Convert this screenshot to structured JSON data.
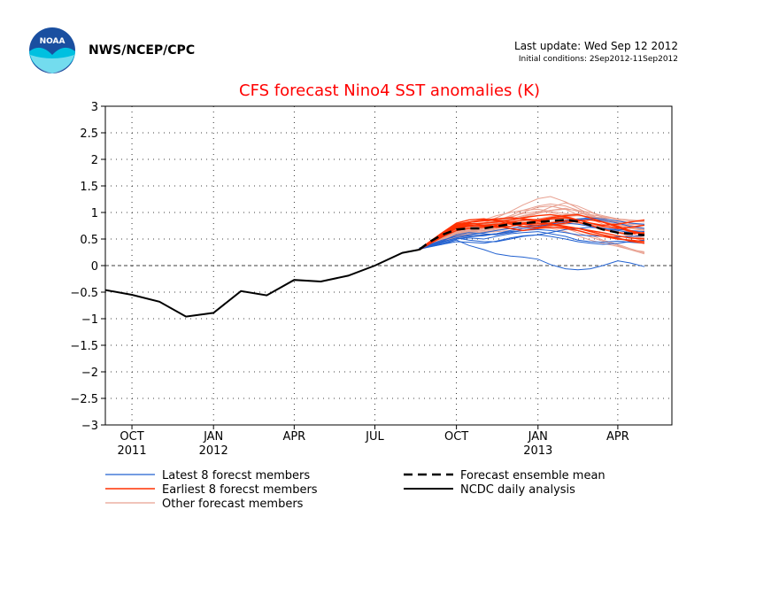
{
  "header": {
    "org": "NWS/NCEP/CPC",
    "last_update": "Last update: Wed Sep 12 2012",
    "initial_conditions": "Initial conditions: 2Sep2012-11Sep2012",
    "logo_text": "NOAA"
  },
  "colors": {
    "title": "#ff0000",
    "latest": "#2060d0",
    "earliest": "#ff3000",
    "other": "#e8a090",
    "mean": "#000000",
    "analysis": "#000000",
    "logo_blue": "#1a4fa0",
    "logo_cyan": "#00c0e0"
  },
  "chart_data": {
    "type": "line",
    "title": "CFS forecast Nino4 SST anomalies (K)",
    "xlabel": "",
    "ylabel": "",
    "ylim": [
      -3,
      3
    ],
    "yticks": [
      "3",
      "2.5",
      "2",
      "1.5",
      "1",
      "0.5",
      "0",
      "−0.5",
      "−1",
      "−1.5",
      "−2",
      "−2.5",
      "−3"
    ],
    "yticks_values": [
      3,
      2.5,
      2,
      1.5,
      1,
      0.5,
      0,
      -0.5,
      -1,
      -1.5,
      -2,
      -2.5,
      -3
    ],
    "xlim": [
      "2011-09-01",
      "2013-06-01"
    ],
    "xticks": [
      {
        "month": "OCT",
        "year": "2011",
        "x": "2011-10-01"
      },
      {
        "month": "JAN",
        "year": "2012",
        "x": "2012-01-01"
      },
      {
        "month": "APR",
        "year": "",
        "x": "2012-04-01"
      },
      {
        "month": "JUL",
        "year": "",
        "x": "2012-07-01"
      },
      {
        "month": "OCT",
        "year": "",
        "x": "2012-10-01"
      },
      {
        "month": "JAN",
        "year": "2013",
        "x": "2013-01-01"
      },
      {
        "month": "APR",
        "year": "",
        "x": "2013-04-01"
      }
    ],
    "grid": true,
    "zero_line": true,
    "analysis": {
      "name": "NCDC daily analysis",
      "x": [
        "2011-09-01",
        "2011-10-01",
        "2011-11-01",
        "2011-12-01",
        "2012-01-01",
        "2012-02-01",
        "2012-03-01",
        "2012-04-01",
        "2012-05-01",
        "2012-06-01",
        "2012-07-01",
        "2012-08-01",
        "2012-08-20"
      ],
      "y": [
        -0.46,
        -0.55,
        -0.68,
        -0.96,
        -0.89,
        -0.48,
        -0.56,
        -0.27,
        -0.3,
        -0.19,
        0.0,
        0.24,
        0.3
      ]
    },
    "ensemble_mean": {
      "name": "Forecast ensemble mean",
      "x": [
        "2012-08-20",
        "2012-09-01",
        "2012-09-15",
        "2012-10-01",
        "2012-10-15",
        "2012-11-01",
        "2012-11-15",
        "2012-12-01",
        "2012-12-15",
        "2013-01-01",
        "2013-01-15",
        "2013-02-01",
        "2013-02-15",
        "2013-03-01",
        "2013-03-15",
        "2013-04-01",
        "2013-04-15",
        "2013-05-01"
      ],
      "y": [
        0.3,
        0.45,
        0.58,
        0.68,
        0.7,
        0.7,
        0.74,
        0.78,
        0.8,
        0.82,
        0.84,
        0.86,
        0.83,
        0.76,
        0.68,
        0.62,
        0.6,
        0.57
      ]
    },
    "latest_members": {
      "name": "Latest 8 forecst members",
      "x": [
        "2012-08-20",
        "2012-09-15",
        "2012-10-01",
        "2012-10-15",
        "2012-11-01",
        "2012-11-15",
        "2012-12-01",
        "2012-12-15",
        "2013-01-01",
        "2013-01-15",
        "2013-02-01",
        "2013-02-15",
        "2013-03-01",
        "2013-03-15",
        "2013-04-01",
        "2013-04-15",
        "2013-05-01"
      ],
      "series": [
        [
          0.32,
          0.4,
          0.48,
          0.38,
          0.3,
          0.22,
          0.18,
          0.16,
          0.12,
          0.02,
          -0.06,
          -0.08,
          -0.06,
          0.0,
          0.09,
          0.05,
          -0.02
        ],
        [
          0.32,
          0.42,
          0.5,
          0.52,
          0.5,
          0.55,
          0.6,
          0.62,
          0.64,
          0.6,
          0.55,
          0.48,
          0.45,
          0.44,
          0.46,
          0.44,
          0.42
        ],
        [
          0.33,
          0.45,
          0.52,
          0.48,
          0.45,
          0.45,
          0.5,
          0.55,
          0.58,
          0.62,
          0.68,
          0.7,
          0.72,
          0.7,
          0.66,
          0.62,
          0.6
        ],
        [
          0.32,
          0.46,
          0.58,
          0.62,
          0.6,
          0.58,
          0.62,
          0.66,
          0.72,
          0.78,
          0.85,
          0.88,
          0.9,
          0.88,
          0.84,
          0.8,
          0.78
        ],
        [
          0.31,
          0.4,
          0.45,
          0.44,
          0.42,
          0.46,
          0.52,
          0.56,
          0.58,
          0.55,
          0.5,
          0.45,
          0.42,
          0.4,
          0.42,
          0.45,
          0.48
        ],
        [
          0.33,
          0.48,
          0.55,
          0.58,
          0.62,
          0.66,
          0.7,
          0.74,
          0.76,
          0.8,
          0.82,
          0.86,
          0.88,
          0.85,
          0.8,
          0.74,
          0.7
        ],
        [
          0.32,
          0.44,
          0.52,
          0.56,
          0.58,
          0.6,
          0.64,
          0.66,
          0.68,
          0.66,
          0.62,
          0.58,
          0.56,
          0.55,
          0.54,
          0.55,
          0.56
        ],
        [
          0.31,
          0.42,
          0.5,
          0.54,
          0.56,
          0.6,
          0.66,
          0.7,
          0.74,
          0.78,
          0.8,
          0.78,
          0.74,
          0.7,
          0.68,
          0.66,
          0.64
        ]
      ]
    },
    "earliest_members": {
      "name": "Earliest 8 forecst members",
      "x": [
        "2012-08-20",
        "2012-09-15",
        "2012-10-01",
        "2012-10-15",
        "2012-11-01",
        "2012-11-15",
        "2012-12-01",
        "2012-12-15",
        "2013-01-01",
        "2013-01-15",
        "2013-02-01",
        "2013-02-15",
        "2013-03-01",
        "2013-03-15",
        "2013-04-01",
        "2013-04-15",
        "2013-05-01"
      ],
      "series": [
        [
          0.3,
          0.6,
          0.78,
          0.82,
          0.84,
          0.86,
          0.82,
          0.8,
          0.84,
          0.88,
          0.9,
          0.86,
          0.8,
          0.74,
          0.7,
          0.72,
          0.76
        ],
        [
          0.3,
          0.55,
          0.7,
          0.74,
          0.76,
          0.78,
          0.8,
          0.78,
          0.76,
          0.8,
          0.84,
          0.82,
          0.76,
          0.68,
          0.62,
          0.6,
          0.62
        ],
        [
          0.3,
          0.58,
          0.76,
          0.8,
          0.76,
          0.74,
          0.7,
          0.66,
          0.7,
          0.72,
          0.7,
          0.66,
          0.6,
          0.55,
          0.5,
          0.48,
          0.45
        ],
        [
          0.31,
          0.62,
          0.8,
          0.86,
          0.88,
          0.84,
          0.78,
          0.74,
          0.72,
          0.76,
          0.8,
          0.84,
          0.86,
          0.82,
          0.74,
          0.66,
          0.6
        ],
        [
          0.3,
          0.54,
          0.66,
          0.7,
          0.72,
          0.76,
          0.82,
          0.86,
          0.84,
          0.78,
          0.72,
          0.7,
          0.66,
          0.62,
          0.56,
          0.52,
          0.5
        ],
        [
          0.3,
          0.6,
          0.74,
          0.78,
          0.8,
          0.82,
          0.86,
          0.9,
          0.94,
          0.96,
          0.92,
          0.86,
          0.8,
          0.76,
          0.78,
          0.82,
          0.86
        ],
        [
          0.3,
          0.56,
          0.72,
          0.76,
          0.74,
          0.72,
          0.74,
          0.78,
          0.8,
          0.78,
          0.74,
          0.7,
          0.64,
          0.58,
          0.52,
          0.46,
          0.42
        ],
        [
          0.31,
          0.58,
          0.74,
          0.82,
          0.86,
          0.88,
          0.9,
          0.88,
          0.86,
          0.9,
          0.94,
          0.96,
          0.9,
          0.82,
          0.72,
          0.64,
          0.58
        ]
      ]
    },
    "other_members": {
      "name": "Other forecast members",
      "x": [
        "2012-08-20",
        "2012-09-15",
        "2012-10-01",
        "2012-10-15",
        "2012-11-01",
        "2012-11-15",
        "2012-12-01",
        "2012-12-15",
        "2013-01-01",
        "2013-01-15",
        "2013-02-01",
        "2013-02-15",
        "2013-03-01",
        "2013-03-15",
        "2013-04-01",
        "2013-04-15",
        "2013-05-01"
      ],
      "series": [
        [
          0.3,
          0.5,
          0.64,
          0.72,
          0.8,
          0.9,
          1.02,
          1.14,
          1.26,
          1.3,
          1.2,
          1.08,
          0.96,
          0.86,
          0.8,
          0.78,
          0.76
        ],
        [
          0.3,
          0.48,
          0.6,
          0.66,
          0.72,
          0.8,
          0.9,
          1.0,
          1.1,
          1.12,
          1.06,
          0.96,
          0.88,
          0.78,
          0.7,
          0.66,
          0.62
        ],
        [
          0.3,
          0.46,
          0.56,
          0.6,
          0.64,
          0.66,
          0.7,
          0.72,
          0.76,
          0.78,
          0.74,
          0.66,
          0.58,
          0.48,
          0.4,
          0.32,
          0.24
        ],
        [
          0.3,
          0.52,
          0.66,
          0.72,
          0.76,
          0.8,
          0.84,
          0.9,
          0.98,
          1.04,
          1.08,
          1.02,
          0.92,
          0.82,
          0.72,
          0.62,
          0.52
        ],
        [
          0.3,
          0.44,
          0.54,
          0.58,
          0.62,
          0.64,
          0.66,
          0.7,
          0.72,
          0.7,
          0.64,
          0.56,
          0.48,
          0.42,
          0.36,
          0.3,
          0.26
        ],
        [
          0.3,
          0.56,
          0.7,
          0.78,
          0.86,
          0.94,
          1.0,
          1.04,
          1.06,
          1.02,
          0.98,
          0.94,
          0.92,
          0.9,
          0.88,
          0.86,
          0.84
        ],
        [
          0.3,
          0.5,
          0.62,
          0.66,
          0.68,
          0.72,
          0.78,
          0.84,
          0.88,
          0.92,
          0.96,
          0.98,
          0.96,
          0.92,
          0.86,
          0.8,
          0.76
        ],
        [
          0.3,
          0.48,
          0.58,
          0.64,
          0.7,
          0.76,
          0.8,
          0.82,
          0.8,
          0.76,
          0.7,
          0.62,
          0.54,
          0.46,
          0.38,
          0.3,
          0.22
        ],
        [
          0.3,
          0.54,
          0.68,
          0.74,
          0.78,
          0.82,
          0.86,
          0.92,
          1.0,
          1.1,
          1.18,
          1.12,
          1.02,
          0.9,
          0.8,
          0.72,
          0.66
        ],
        [
          0.3,
          0.46,
          0.56,
          0.62,
          0.66,
          0.7,
          0.74,
          0.78,
          0.82,
          0.86,
          0.88,
          0.86,
          0.8,
          0.72,
          0.64,
          0.56,
          0.5
        ],
        [
          0.3,
          0.52,
          0.66,
          0.7,
          0.72,
          0.74,
          0.78,
          0.8,
          0.84,
          0.88,
          0.92,
          0.94,
          0.92,
          0.88,
          0.82,
          0.76,
          0.7
        ],
        [
          0.3,
          0.5,
          0.62,
          0.68,
          0.74,
          0.82,
          0.92,
          0.98,
          1.02,
          1.0,
          0.94,
          0.86,
          0.78,
          0.7,
          0.62,
          0.56,
          0.52
        ],
        [
          0.3,
          0.48,
          0.6,
          0.64,
          0.66,
          0.68,
          0.7,
          0.74,
          0.78,
          0.82,
          0.86,
          0.88,
          0.86,
          0.82,
          0.78,
          0.72,
          0.68
        ],
        [
          0.3,
          0.54,
          0.7,
          0.76,
          0.8,
          0.84,
          0.88,
          0.94,
          1.0,
          1.04,
          1.06,
          1.04,
          1.0,
          0.94,
          0.88,
          0.84,
          0.82
        ],
        [
          0.3,
          0.46,
          0.54,
          0.56,
          0.58,
          0.6,
          0.62,
          0.66,
          0.7,
          0.74,
          0.78,
          0.8,
          0.76,
          0.7,
          0.62,
          0.54,
          0.46
        ],
        [
          0.3,
          0.52,
          0.64,
          0.7,
          0.76,
          0.84,
          0.94,
          1.04,
          1.12,
          1.16,
          1.12,
          1.04,
          0.94,
          0.84,
          0.76,
          0.7,
          0.66
        ]
      ]
    },
    "legend": [
      {
        "label": "Latest 8 forecst members",
        "style": "latest"
      },
      {
        "label": "Earliest 8 forecst members",
        "style": "earliest"
      },
      {
        "label": "Other forecast members",
        "style": "other"
      },
      {
        "label": "Forecast ensemble mean",
        "style": "mean"
      },
      {
        "label": "NCDC daily analysis",
        "style": "analysis"
      }
    ]
  }
}
